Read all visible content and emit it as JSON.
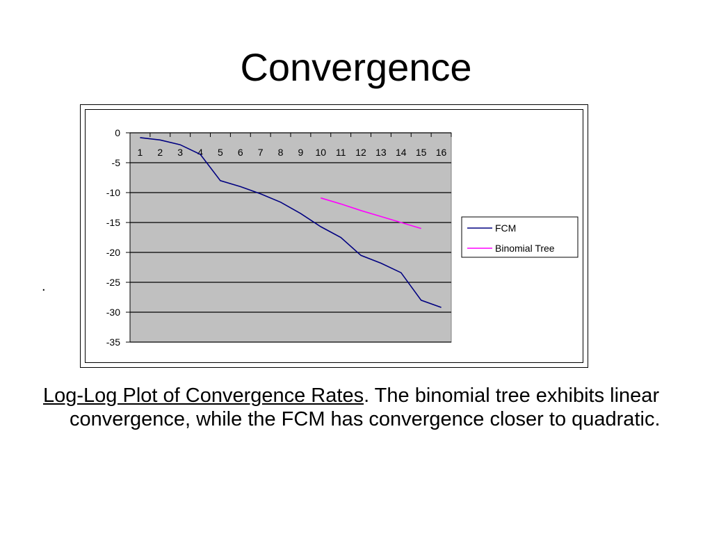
{
  "slide": {
    "title": "Convergence",
    "stray_mark": ".",
    "caption_lead": "Log-Log Plot of Convergence Rates",
    "caption_rest": ". The binomial tree exhibits linear convergence, while the FCM has convergence closer to quadratic."
  },
  "chart_data": {
    "type": "line",
    "title": "",
    "xlabel": "",
    "ylabel": "",
    "categories": [
      "1",
      "2",
      "3",
      "4",
      "5",
      "6",
      "7",
      "8",
      "9",
      "10",
      "11",
      "12",
      "13",
      "14",
      "15",
      "16"
    ],
    "y_ticks": [
      0,
      -5,
      -10,
      -15,
      -20,
      -25,
      -30,
      -35
    ],
    "ylim": [
      -35,
      0
    ],
    "grid": "horizontal",
    "plot_background": "#c0c0c0",
    "legend_position": "right",
    "series": [
      {
        "name": "FCM",
        "color": "#000080",
        "values": [
          -0.8,
          -1.2,
          -2.0,
          -3.6,
          -8.0,
          -9.0,
          -10.2,
          -11.6,
          -13.5,
          -15.7,
          -17.5,
          -20.5,
          -21.8,
          -23.4,
          -28.0,
          -29.2
        ]
      },
      {
        "name": "Binomial Tree",
        "color": "#ff00ff",
        "values": [
          null,
          null,
          null,
          null,
          null,
          null,
          null,
          null,
          null,
          -10.9,
          -11.9,
          -13.0,
          -14.0,
          -15.0,
          -16.0,
          null
        ]
      }
    ]
  }
}
